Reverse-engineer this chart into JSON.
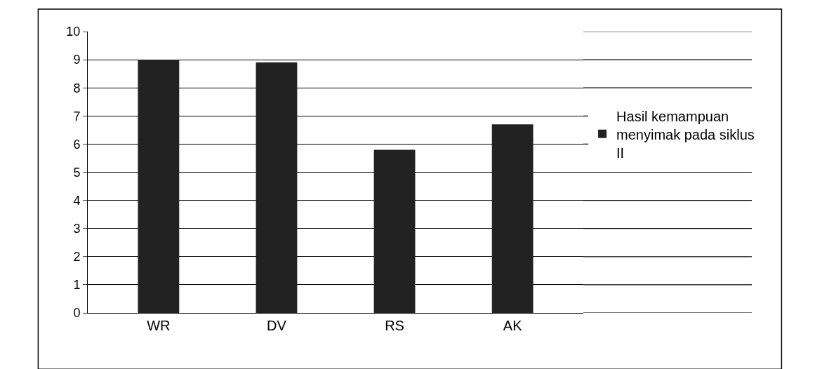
{
  "chart_data": {
    "type": "bar",
    "categories": [
      "WR",
      "DV",
      "RS",
      "AK"
    ],
    "series": [
      {
        "name": "Hasil kemampuan menyimak pada siklus II",
        "color": "#222222",
        "values": [
          9,
          8.9,
          5.8,
          6.7
        ]
      }
    ],
    "ylim": [
      0,
      10
    ],
    "yticks": [
      0,
      1,
      2,
      3,
      4,
      5,
      6,
      7,
      8,
      9,
      10
    ],
    "grid": "y",
    "legend": "right"
  }
}
